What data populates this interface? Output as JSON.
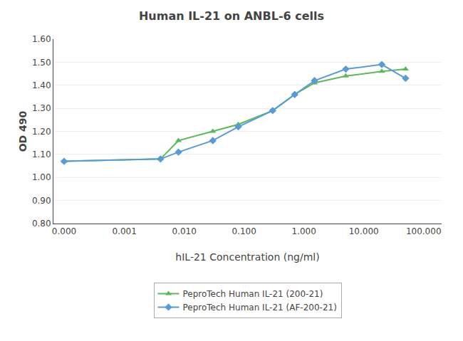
{
  "chart_data": {
    "type": "line",
    "title": "Human IL-21 on ANBL-6 cells",
    "xlabel": "hIL-21 Concentration (ng/ml)",
    "ylabel": "OD 490",
    "x": [
      9.8e-05,
      0.004,
      0.008,
      0.03,
      0.08,
      0.3,
      0.7,
      1.5,
      5.0,
      20.0,
      50.0
    ],
    "series": [
      {
        "name": "PeproTech Human IL-21 (200-21)",
        "color": "#5cb85c",
        "marker": "triangle",
        "values": [
          1.07,
          1.08,
          1.16,
          1.2,
          1.23,
          1.29,
          1.36,
          1.41,
          1.44,
          1.46,
          1.47
        ]
      },
      {
        "name": "PeproTech Human IL-21 (AF-200-21)",
        "color": "#5b9bd5",
        "marker": "diamond",
        "values": [
          1.07,
          1.08,
          1.11,
          1.16,
          1.22,
          1.29,
          1.36,
          1.42,
          1.47,
          1.49,
          1.43
        ]
      }
    ],
    "log": "x",
    "xlim": [
      6.5e-05,
      200.0
    ],
    "xticks": [
      {
        "value": 9.8e-05,
        "label": "0.000"
      },
      0.001,
      {
        "value": 0.01,
        "label": "0.010"
      },
      {
        "value": 0.1,
        "label": "0.100"
      },
      {
        "value": 1.0,
        "label": "1.000"
      },
      {
        "value": 10.0,
        "label": "10.000"
      },
      {
        "value": 100.0,
        "label": "100.000"
      }
    ],
    "ylim": [
      0.8,
      1.6
    ],
    "yticks": [
      {
        "value": 0.8,
        "label": "0.80"
      },
      {
        "value": 0.9,
        "label": "0.90"
      },
      {
        "value": 1.0,
        "label": "1.00"
      },
      {
        "value": 1.1,
        "label": "1.10"
      },
      {
        "value": 1.2,
        "label": "1.20"
      },
      {
        "value": 1.3,
        "label": "1.30"
      },
      {
        "value": 1.4,
        "label": "1.40"
      },
      {
        "value": 1.5,
        "label": "1.50"
      },
      {
        "value": 1.6,
        "label": "1.60"
      }
    ],
    "grid": "y",
    "legend": "bottom"
  }
}
